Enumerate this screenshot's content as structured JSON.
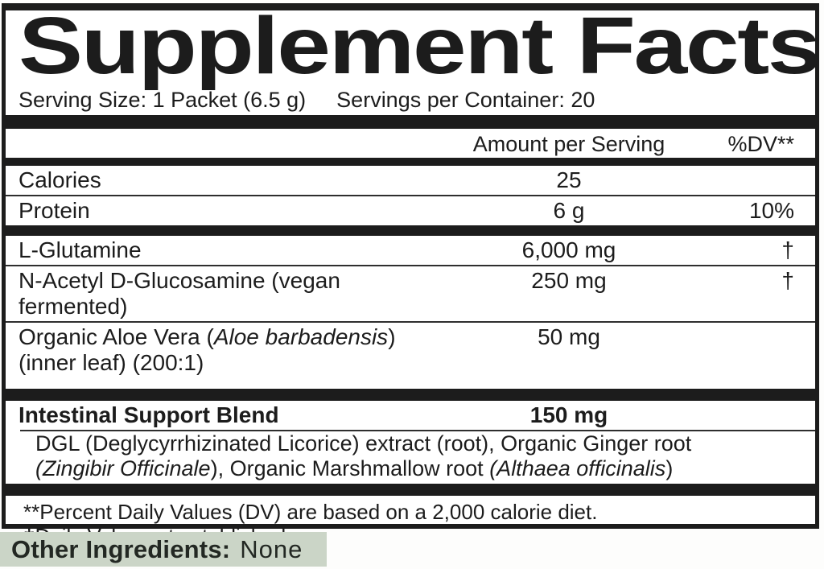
{
  "colors": {
    "ink": "#1c1c1c",
    "banner_green": "#cbd5c7"
  },
  "panel": {
    "title": "Supplement Facts",
    "serving_size": "Serving Size: 1 Packet (6.5 g)",
    "servings_per_container": "Servings per Container: 20",
    "columns": {
      "amount": "Amount per Serving",
      "dv": "%DV**"
    },
    "calorie_rows": [
      {
        "name_segments": [
          {
            "text": "Calories"
          }
        ],
        "amount": "25",
        "dv": ""
      },
      {
        "name_segments": [
          {
            "text": "Protein"
          }
        ],
        "amount": "6 g",
        "dv": "10%"
      }
    ],
    "supplement_rows": [
      {
        "name_segments": [
          {
            "text": "L-Glutamine"
          }
        ],
        "amount": "6,000 mg",
        "dv": "†"
      },
      {
        "name_segments": [
          {
            "text": "N-Acetyl D-Glucosamine (vegan fermented)"
          }
        ],
        "amount": "250 mg",
        "dv": "†"
      },
      {
        "name_segments": [
          {
            "text": "Organic Aloe Vera ("
          },
          {
            "text": "Aloe barbadensis",
            "italic": true
          },
          {
            "text": ")\n(inner leaf) (200:1)"
          }
        ],
        "amount": "50 mg",
        "dv": ""
      }
    ],
    "blend": {
      "name": "Intestinal Support Blend",
      "amount": "150 mg",
      "description_segments": [
        {
          "text": "DGL (Deglycyrrhizinated Licorice) extract (root), Organic Ginger root\n"
        },
        {
          "text": "(Zingibir Officinale",
          "italic": true
        },
        {
          "text": "), Organic Marshmallow root "
        },
        {
          "text": "(Althaea officinalis",
          "italic": true
        },
        {
          "text": ")"
        }
      ]
    },
    "footnotes": [
      "**Percent Daily Values (DV) are based on a 2,000 calorie diet.",
      "†Daily Value not established"
    ]
  },
  "other_ingredients": {
    "label": "Other Ingredients:",
    "value": "None"
  }
}
